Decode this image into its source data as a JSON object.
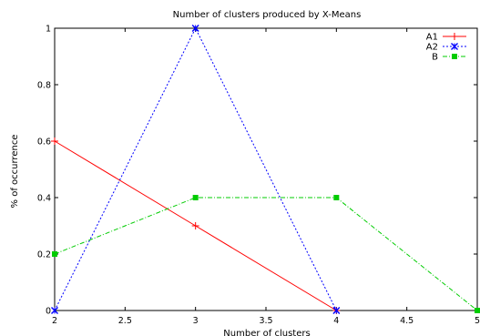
{
  "chart_data": {
    "type": "line",
    "title": "Number of clusters produced by X-Means",
    "xlabel": "Number of clusters",
    "ylabel": "% of occurrence",
    "xlim": [
      2,
      5
    ],
    "ylim": [
      0,
      1
    ],
    "xticks": [
      "2",
      "2.5",
      "3",
      "3.5",
      "4",
      "4.5",
      "5"
    ],
    "yticks": [
      "0",
      "0.2",
      "0.4",
      "0.6",
      "0.8",
      "1"
    ],
    "grid": false,
    "legend_position": "top-right",
    "series": [
      {
        "name": "A1",
        "color": "#ff0000",
        "marker": "plus",
        "dash": "solid",
        "x": [
          2,
          3,
          4
        ],
        "y": [
          0.6,
          0.3,
          0.0
        ]
      },
      {
        "name": "A2",
        "color": "#0000ff",
        "marker": "star",
        "dash": "dotted",
        "x": [
          2,
          3,
          4
        ],
        "y": [
          0.0,
          1.0,
          0.0
        ]
      },
      {
        "name": "B",
        "color": "#00cc00",
        "marker": "square",
        "dash": "dashdot",
        "x": [
          2,
          3,
          4,
          5
        ],
        "y": [
          0.2,
          0.4,
          0.4,
          0.0
        ]
      }
    ]
  }
}
